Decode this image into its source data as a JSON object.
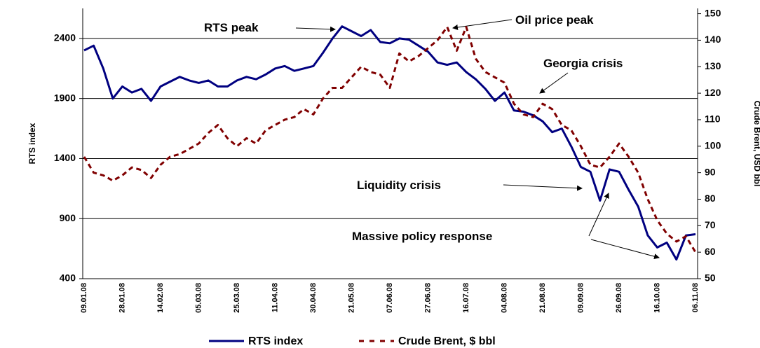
{
  "chart_data": {
    "type": "line",
    "y_label": "RTS index",
    "y2_label": "Crude Brent, USD bbl",
    "categories": [
      "09.01.08",
      null,
      null,
      null,
      "28.01.08",
      null,
      null,
      null,
      "14.02.08",
      null,
      null,
      null,
      "05.03.08",
      null,
      null,
      null,
      "25.03.08",
      null,
      null,
      null,
      "11.04.08",
      null,
      null,
      null,
      "30.04.08",
      null,
      null,
      null,
      "21.05.08",
      null,
      null,
      null,
      "07.06.08",
      null,
      null,
      null,
      "27.06.08",
      null,
      null,
      null,
      "16.07.08",
      null,
      null,
      null,
      "04.08.08",
      null,
      null,
      null,
      "21.08.08",
      null,
      null,
      null,
      "09.09.08",
      null,
      null,
      null,
      "26.09.08",
      null,
      null,
      null,
      "16.10.08",
      null,
      null,
      null,
      "06.11.08"
    ],
    "series": [
      {
        "name": "RTS index",
        "color": "#000080",
        "values": [
          2300,
          2340,
          2150,
          1900,
          2000,
          1950,
          1980,
          1880,
          2000,
          2040,
          2080,
          2050,
          2030,
          2050,
          2000,
          2000,
          2050,
          2080,
          2060,
          2100,
          2150,
          2170,
          2130,
          2150,
          2170,
          2280,
          2400,
          2500,
          2460,
          2420,
          2470,
          2370,
          2360,
          2400,
          2390,
          2340,
          2290,
          2200,
          2180,
          2200,
          2120,
          2060,
          1980,
          1880,
          1950,
          1800,
          1790,
          1760,
          1710,
          1620,
          1650,
          1500,
          1330,
          1290,
          1050,
          1310,
          1290,
          1140,
          1000,
          760,
          660,
          700,
          560,
          760,
          770
        ]
      },
      {
        "name": "Crude Brent, $ bbl",
        "color": "#800000",
        "axis": "y2",
        "dashed": true,
        "values": [
          96,
          90,
          89,
          87,
          89,
          92,
          91,
          88,
          93,
          96,
          97,
          99,
          101,
          105,
          108,
          103,
          100,
          103,
          101,
          106,
          108,
          110,
          111,
          114,
          112,
          118,
          122,
          122,
          126,
          130,
          128,
          127,
          122,
          135,
          132,
          134,
          137,
          140,
          145,
          136,
          145,
          133,
          128,
          126,
          124,
          116,
          112,
          111,
          116,
          114,
          108,
          106,
          100,
          93,
          92,
          96,
          101,
          96,
          90,
          80,
          72,
          67,
          64,
          66,
          60
        ]
      }
    ],
    "ylim": [
      400,
      2650
    ],
    "yticks": [
      400,
      900,
      1400,
      1900,
      2400
    ],
    "y2lim": [
      50,
      152
    ],
    "y2ticks": [
      50,
      60,
      70,
      80,
      90,
      100,
      110,
      120,
      130,
      140,
      150
    ],
    "grid": true,
    "annotations": [
      "RTS peak",
      "Oil price peak",
      "Georgia crisis",
      "Liquidity crisis",
      "Massive policy response"
    ]
  }
}
